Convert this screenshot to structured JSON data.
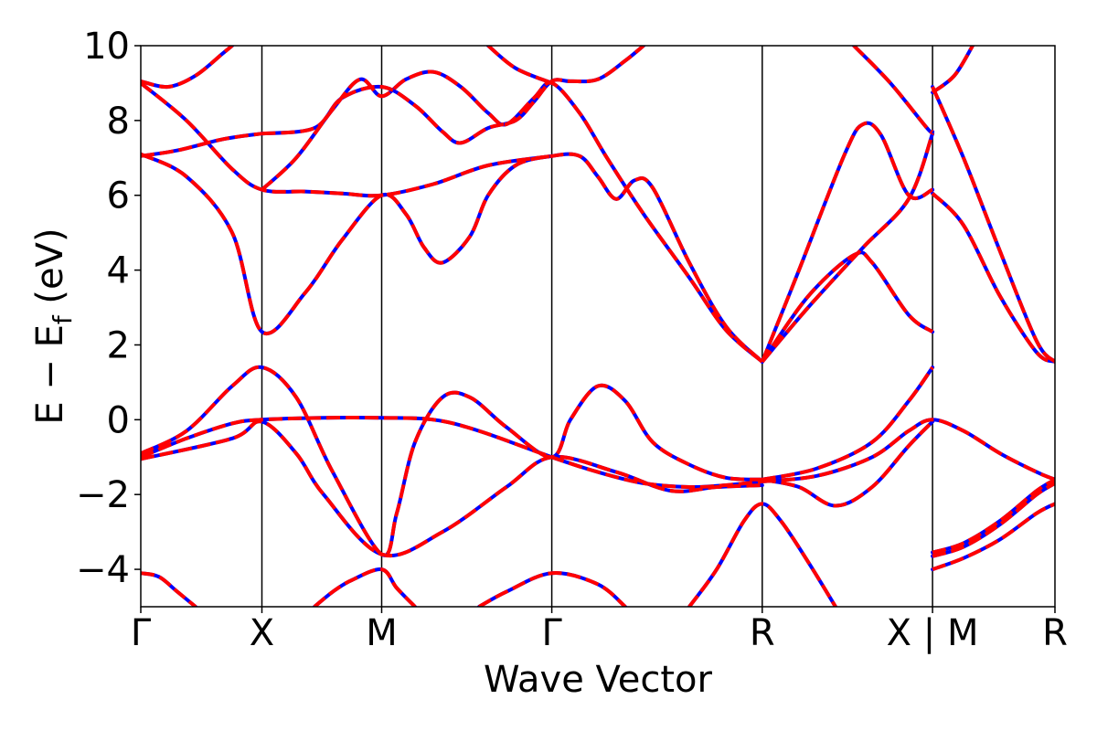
{
  "chart_data": {
    "type": "line",
    "title": "",
    "xlabel": "Wave Vector",
    "ylabel": "E − E_f (eV)",
    "ylabel_parts": {
      "main": "E − E",
      "sub": "f",
      "tail": " (eV)"
    },
    "ylim": [
      -5,
      10
    ],
    "yticks": [
      -4,
      -2,
      0,
      2,
      4,
      6,
      8,
      10
    ],
    "ytick_labels": [
      "−4",
      "−2",
      "0",
      "2",
      "4",
      "6",
      "8",
      "10"
    ],
    "xlim": [
      0,
      1
    ],
    "kpoints": [
      {
        "label": "Γ",
        "x": 0.0
      },
      {
        "label": "X",
        "x": 0.1325
      },
      {
        "label": "M",
        "x": 0.2635
      },
      {
        "label": "Γ",
        "x": 0.4496
      },
      {
        "label": "R",
        "x": 0.6798
      },
      {
        "label": "X | M",
        "x": 0.8661
      },
      {
        "label": "R",
        "x": 1.0
      }
    ],
    "grid": false,
    "colors": {
      "set_a": "#0000ff",
      "set_b": "#ff0000"
    },
    "band_sets": [
      {
        "key": "set_a",
        "style": "solid"
      },
      {
        "key": "set_b",
        "style": "dashed"
      }
    ],
    "bands": [
      {
        "points": [
          [
            0,
            9.05
          ],
          [
            0.03,
            8.9
          ],
          [
            0.06,
            9.2
          ],
          [
            0.09,
            9.8
          ],
          [
            0.1,
            10
          ]
        ]
      },
      {
        "points": [
          [
            0,
            7.05
          ],
          [
            0.04,
            7.2
          ],
          [
            0.09,
            7.5
          ],
          [
            0.1325,
            7.65
          ]
        ]
      },
      {
        "points": [
          [
            0,
            7.1
          ],
          [
            0.05,
            6.5
          ],
          [
            0.1,
            5.0
          ],
          [
            0.1325,
            2.35
          ],
          [
            0.18,
            3.4
          ],
          [
            0.22,
            4.8
          ],
          [
            0.2635,
            6.0
          ],
          [
            0.29,
            5.5
          ],
          [
            0.31,
            4.6
          ],
          [
            0.33,
            4.2
          ],
          [
            0.36,
            4.9
          ],
          [
            0.38,
            6.0
          ],
          [
            0.41,
            6.8
          ],
          [
            0.4496,
            7.05
          ],
          [
            0.48,
            7.05
          ],
          [
            0.5,
            6.5
          ],
          [
            0.52,
            5.9
          ],
          [
            0.54,
            6.4
          ],
          [
            0.56,
            6.2
          ],
          [
            0.6,
            4.2
          ],
          [
            0.64,
            2.5
          ],
          [
            0.6798,
            1.55
          ]
        ]
      },
      {
        "points": [
          [
            0,
            9.0
          ],
          [
            0.05,
            8.0
          ],
          [
            0.1,
            6.7
          ],
          [
            0.1325,
            6.15
          ],
          [
            0.18,
            6.1
          ],
          [
            0.22,
            6.05
          ],
          [
            0.2635,
            6.0
          ],
          [
            0.32,
            6.3
          ],
          [
            0.38,
            6.8
          ],
          [
            0.4496,
            7.05
          ]
        ]
      },
      {
        "points": [
          [
            0.1325,
            7.65
          ],
          [
            0.19,
            7.8
          ],
          [
            0.22,
            8.6
          ],
          [
            0.2635,
            8.9
          ],
          [
            0.3,
            8.4
          ],
          [
            0.33,
            7.7
          ],
          [
            0.35,
            7.4
          ],
          [
            0.38,
            7.8
          ],
          [
            0.41,
            8.0
          ],
          [
            0.43,
            8.5
          ],
          [
            0.4496,
            9.05
          ],
          [
            0.47,
            9.05
          ],
          [
            0.5,
            9.1
          ],
          [
            0.53,
            9.6
          ],
          [
            0.55,
            10
          ]
        ]
      },
      {
        "points": [
          [
            0.1325,
            6.15
          ],
          [
            0.17,
            7.0
          ],
          [
            0.21,
            8.3
          ],
          [
            0.24,
            9.1
          ],
          [
            0.2635,
            8.65
          ],
          [
            0.29,
            9.1
          ],
          [
            0.32,
            9.3
          ],
          [
            0.35,
            8.9
          ],
          [
            0.38,
            8.2
          ],
          [
            0.4,
            7.9
          ],
          [
            0.43,
            8.6
          ],
          [
            0.4496,
            9.0
          ],
          [
            0.48,
            8.2
          ],
          [
            0.51,
            7.0
          ],
          [
            0.55,
            5.5
          ],
          [
            0.6,
            3.8
          ],
          [
            0.64,
            2.4
          ],
          [
            0.6798,
            1.55
          ]
        ]
      },
      {
        "points": [
          [
            0.38,
            10
          ],
          [
            0.41,
            9.4
          ],
          [
            0.4496,
            9.0
          ]
        ]
      },
      {
        "points": [
          [
            0.6798,
            1.55
          ],
          [
            0.72,
            4.0
          ],
          [
            0.77,
            7.1
          ],
          [
            0.79,
            7.9
          ],
          [
            0.81,
            7.6
          ],
          [
            0.84,
            6.0
          ],
          [
            0.8661,
            6.15
          ]
        ]
      },
      {
        "points": [
          [
            0.6798,
            1.55
          ],
          [
            0.73,
            3.3
          ],
          [
            0.78,
            4.4
          ],
          [
            0.8,
            4.2
          ],
          [
            0.84,
            2.8
          ],
          [
            0.8661,
            2.35
          ]
        ]
      },
      {
        "points": [
          [
            0.6798,
            1.55
          ],
          [
            0.73,
            3.0
          ],
          [
            0.79,
            4.6
          ],
          [
            0.84,
            5.9
          ],
          [
            0.8661,
            7.65
          ]
        ]
      },
      {
        "points": [
          [
            0.78,
            10
          ],
          [
            0.82,
            9.0
          ],
          [
            0.86,
            7.8
          ],
          [
            0.8661,
            7.7
          ]
        ]
      },
      {
        "points": [
          [
            0.8661,
            8.75
          ],
          [
            0.89,
            9.2
          ],
          [
            0.91,
            10
          ]
        ]
      },
      {
        "points": [
          [
            0.8661,
            8.9
          ],
          [
            0.9,
            7.0
          ],
          [
            0.94,
            4.5
          ],
          [
            0.98,
            2.1
          ],
          [
            1.0,
            1.55
          ]
        ]
      },
      {
        "points": [
          [
            0.8661,
            6.05
          ],
          [
            0.9,
            5.2
          ],
          [
            0.94,
            3.3
          ],
          [
            0.98,
            1.8
          ],
          [
            1.0,
            1.55
          ]
        ]
      },
      {
        "points": [
          [
            0,
            -0.9
          ],
          [
            0.05,
            -0.3
          ],
          [
            0.1,
            0.9
          ],
          [
            0.1325,
            1.4
          ],
          [
            0.17,
            0.6
          ],
          [
            0.21,
            -1.4
          ],
          [
            0.2635,
            -3.6
          ],
          [
            0.28,
            -2.5
          ],
          [
            0.3,
            -0.6
          ],
          [
            0.33,
            0.6
          ],
          [
            0.36,
            0.6
          ],
          [
            0.4,
            -0.2
          ],
          [
            0.4496,
            -1.0
          ],
          [
            0.47,
            0.0
          ],
          [
            0.5,
            0.9
          ],
          [
            0.53,
            0.5
          ],
          [
            0.56,
            -0.6
          ],
          [
            0.6,
            -1.2
          ],
          [
            0.64,
            -1.55
          ],
          [
            0.6798,
            -1.6
          ]
        ]
      },
      {
        "points": [
          [
            0,
            -1.0
          ],
          [
            0.05,
            -0.5
          ],
          [
            0.1,
            -0.1
          ],
          [
            0.1325,
            0.0
          ],
          [
            0.2,
            0.05
          ],
          [
            0.2635,
            0.05
          ],
          [
            0.32,
            0.0
          ],
          [
            0.37,
            -0.3
          ],
          [
            0.4496,
            -1.0
          ],
          [
            0.5,
            -1.4
          ],
          [
            0.55,
            -1.7
          ],
          [
            0.6,
            -1.8
          ],
          [
            0.64,
            -1.75
          ],
          [
            0.6798,
            -1.65
          ]
        ]
      },
      {
        "points": [
          [
            0,
            -1.05
          ],
          [
            0.1,
            -0.5
          ],
          [
            0.1325,
            -0.05
          ],
          [
            0.17,
            -0.9
          ],
          [
            0.2,
            -2.0
          ],
          [
            0.2635,
            -3.6
          ],
          [
            0.33,
            -3.0
          ],
          [
            0.4,
            -1.8
          ],
          [
            0.4496,
            -1.0
          ],
          [
            0.52,
            -1.4
          ],
          [
            0.58,
            -1.9
          ],
          [
            0.63,
            -1.8
          ],
          [
            0.6798,
            -1.75
          ]
        ]
      },
      {
        "points": [
          [
            0.6798,
            -1.6
          ],
          [
            0.74,
            -1.3
          ],
          [
            0.8,
            -0.6
          ],
          [
            0.84,
            0.5
          ],
          [
            0.8661,
            1.4
          ]
        ]
      },
      {
        "points": [
          [
            0.6798,
            -1.6
          ],
          [
            0.72,
            -1.8
          ],
          [
            0.76,
            -2.3
          ],
          [
            0.8,
            -1.8
          ],
          [
            0.84,
            -0.7
          ],
          [
            0.8661,
            -0.05
          ]
        ]
      },
      {
        "points": [
          [
            0.6798,
            -1.65
          ],
          [
            0.74,
            -1.5
          ],
          [
            0.8,
            -1.0
          ],
          [
            0.84,
            -0.3
          ],
          [
            0.8661,
            0.0
          ],
          [
            0.9,
            -0.3
          ],
          [
            0.94,
            -0.9
          ],
          [
            0.98,
            -1.4
          ],
          [
            1.0,
            -1.6
          ]
        ]
      },
      {
        "points": [
          [
            0.8661,
            -3.55
          ],
          [
            0.9,
            -3.3
          ],
          [
            0.94,
            -2.7
          ],
          [
            0.98,
            -1.9
          ],
          [
            1.0,
            -1.6
          ]
        ]
      },
      {
        "points": [
          [
            0.8661,
            -3.65
          ],
          [
            0.9,
            -3.4
          ],
          [
            0.94,
            -2.8
          ],
          [
            0.98,
            -2.0
          ],
          [
            1.0,
            -1.7
          ]
        ]
      },
      {
        "points": [
          [
            0.8661,
            -4.0
          ],
          [
            0.9,
            -3.7
          ],
          [
            0.94,
            -3.2
          ],
          [
            0.98,
            -2.5
          ],
          [
            1.0,
            -2.25
          ]
        ]
      },
      {
        "points": [
          [
            0,
            -4.1
          ],
          [
            0.02,
            -4.2
          ],
          [
            0.04,
            -4.6
          ],
          [
            0.06,
            -5
          ]
        ]
      },
      {
        "points": [
          [
            0.19,
            -5
          ],
          [
            0.21,
            -4.6
          ],
          [
            0.23,
            -4.3
          ],
          [
            0.2635,
            -4.0
          ],
          [
            0.28,
            -4.5
          ],
          [
            0.3,
            -5
          ]
        ]
      },
      {
        "points": [
          [
            0.37,
            -5
          ],
          [
            0.4,
            -4.6
          ],
          [
            0.4496,
            -4.1
          ],
          [
            0.5,
            -4.4
          ],
          [
            0.53,
            -5
          ]
        ]
      },
      {
        "points": [
          [
            0.6,
            -5
          ],
          [
            0.63,
            -4.0
          ],
          [
            0.66,
            -2.7
          ],
          [
            0.6798,
            -2.25
          ],
          [
            0.7,
            -2.7
          ],
          [
            0.73,
            -3.8
          ],
          [
            0.76,
            -5
          ]
        ]
      }
    ]
  }
}
